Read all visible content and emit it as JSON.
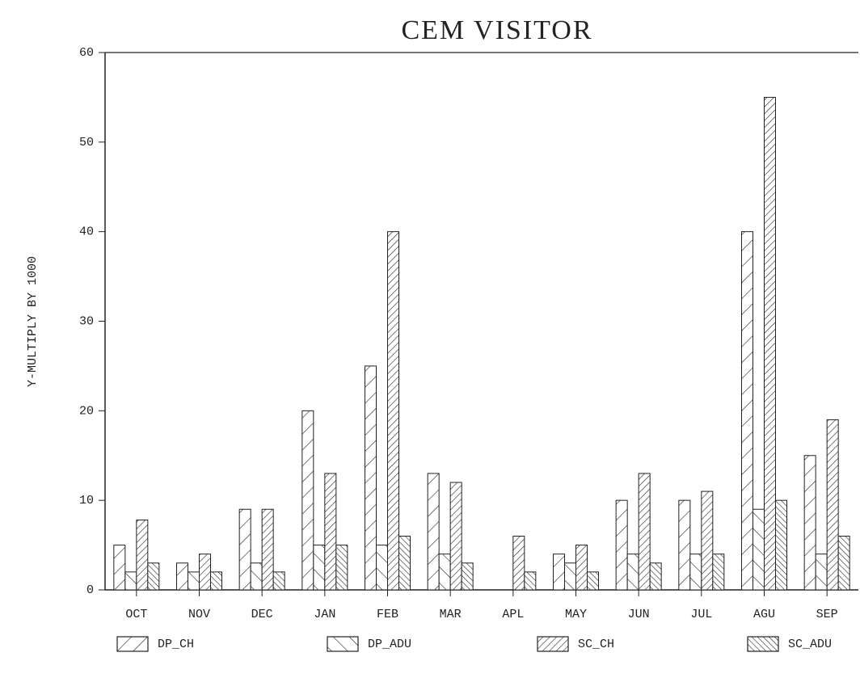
{
  "chart_data": {
    "type": "bar",
    "title": "CEM VISITOR",
    "y_label": "Y-MULTIPLY BY 1000",
    "categories": [
      "OCT",
      "NOV",
      "DEC",
      "JAN",
      "FEB",
      "MAR",
      "APL",
      "MAY",
      "JUN",
      "JUL",
      "AGU",
      "SEP"
    ],
    "series": [
      {
        "name": "DP_CH",
        "color": "#222222",
        "values": [
          5,
          3,
          9,
          20,
          25,
          13,
          0,
          4,
          10,
          10,
          40,
          15
        ]
      },
      {
        "name": "DP_ADU",
        "color": "#222222",
        "values": [
          2,
          2,
          3,
          5,
          5,
          4,
          0,
          3,
          4,
          4,
          9,
          4
        ]
      },
      {
        "name": "SC_CH",
        "color": "#222222",
        "values": [
          7.8,
          4,
          9,
          13,
          40,
          12,
          6,
          5,
          13,
          11,
          55,
          19
        ]
      },
      {
        "name": "SC_ADU",
        "color": "#222222",
        "values": [
          3,
          2,
          2,
          5,
          6,
          3,
          2,
          2,
          3,
          4,
          10,
          6
        ]
      }
    ],
    "ylim": [
      0,
      60
    ],
    "yticks": [
      0,
      10,
      20,
      30,
      40,
      50,
      60
    ],
    "grid": false
  }
}
